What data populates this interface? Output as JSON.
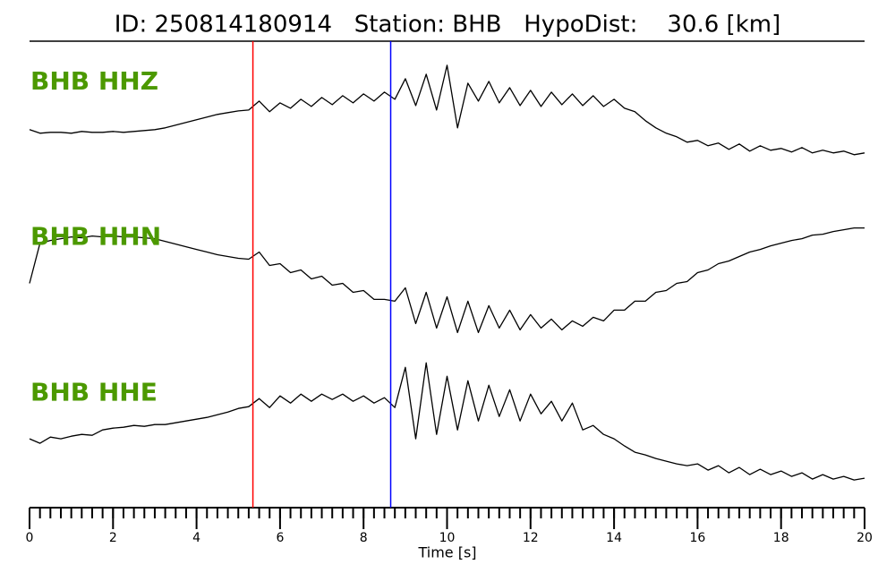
{
  "chart_data": {
    "type": "line",
    "title": "ID: 250814180914   Station: BHB   HypoDist:    30.6 [km]",
    "xlabel": "Time [s]",
    "xlim": [
      0,
      20
    ],
    "xticks": [
      0,
      2,
      4,
      6,
      8,
      10,
      12,
      14,
      16,
      18,
      20
    ],
    "xminorticks": [
      0,
      0.25,
      0.5,
      0.75,
      1,
      1.25,
      1.5,
      1.75,
      2,
      2.25,
      2.5,
      2.75,
      3,
      3.25,
      3.5,
      3.75,
      4,
      4.25,
      4.5,
      4.75,
      5,
      5.25,
      5.5,
      5.75,
      6,
      6.25,
      6.5,
      6.75,
      7,
      7.25,
      7.5,
      7.75,
      8,
      8.25,
      8.5,
      8.75,
      9,
      9.25,
      9.5,
      9.75,
      10,
      10.25,
      10.5,
      10.75,
      11,
      11.25,
      11.5,
      11.75,
      12,
      12.25,
      12.5,
      12.75,
      13,
      13.25,
      13.5,
      13.75,
      14,
      14.25,
      14.5,
      14.75,
      15,
      15.25,
      15.5,
      15.75,
      16,
      16.25,
      16.5,
      16.75,
      17,
      17.25,
      17.5,
      17.75,
      18,
      18.25,
      18.5,
      18.75,
      19,
      19.25,
      19.5,
      19.75,
      20
    ],
    "ylim": [
      -87,
      87
    ],
    "label_color": "#4c9900",
    "picks": [
      {
        "x": 5.35,
        "color": "#ff0000"
      },
      {
        "x": 8.65,
        "color": "#0000ff"
      }
    ],
    "x": [
      0,
      0.25,
      0.5,
      0.75,
      1,
      1.25,
      1.5,
      1.75,
      2,
      2.25,
      2.5,
      2.75,
      3,
      3.25,
      3.5,
      3.75,
      4,
      4.25,
      4.5,
      4.75,
      5,
      5.25,
      5.5,
      5.75,
      6,
      6.25,
      6.5,
      6.75,
      7,
      7.25,
      7.5,
      7.75,
      8,
      8.25,
      8.5,
      8.75,
      9,
      9.25,
      9.5,
      9.75,
      10,
      10.25,
      10.5,
      10.75,
      11,
      11.25,
      11.5,
      11.75,
      12,
      12.25,
      12.5,
      12.75,
      13,
      13.25,
      13.5,
      13.75,
      14,
      14.25,
      14.5,
      14.75,
      15,
      15.25,
      15.5,
      15.75,
      16,
      16.25,
      16.5,
      16.75,
      17,
      17.25,
      17.5,
      17.75,
      18,
      18.25,
      18.5,
      18.75,
      19,
      19.25,
      19.5,
      19.75,
      20
    ],
    "series": [
      {
        "name": "BHB HHZ",
        "color": "#000000",
        "values": [
          -12,
          -16,
          -15,
          -15,
          -16,
          -14,
          -15,
          -15,
          -14,
          -15,
          -14,
          -13,
          -12,
          -10,
          -7,
          -4,
          -1,
          2,
          5,
          7,
          9,
          10,
          20,
          8,
          18,
          12,
          22,
          14,
          24,
          16,
          26,
          18,
          28,
          20,
          30,
          22,
          45,
          15,
          50,
          10,
          60,
          -10,
          40,
          20,
          42,
          18,
          35,
          15,
          32,
          14,
          30,
          16,
          28,
          15,
          26,
          14,
          22,
          12,
          8,
          -2,
          -10,
          -16,
          -20,
          -26,
          -24,
          -30,
          -27,
          -34,
          -28,
          -36,
          -30,
          -35,
          -33,
          -37,
          -32,
          -38,
          -35,
          -38,
          -36,
          -40,
          -38
        ]
      },
      {
        "name": "BHB HHN",
        "color": "#000000",
        "values": [
          -10,
          35,
          38,
          40,
          42,
          41,
          43,
          42,
          43,
          42,
          42,
          41,
          40,
          37,
          34,
          31,
          28,
          25,
          22,
          20,
          18,
          17,
          25,
          10,
          12,
          2,
          5,
          -5,
          -2,
          -12,
          -10,
          -20,
          -18,
          -28,
          -28,
          -30,
          -15,
          -55,
          -20,
          -60,
          -25,
          -65,
          -30,
          -65,
          -35,
          -60,
          -40,
          -62,
          -45,
          -60,
          -50,
          -62,
          -52,
          -58,
          -48,
          -52,
          -40,
          -40,
          -30,
          -30,
          -20,
          -18,
          -10,
          -8,
          2,
          5,
          12,
          15,
          20,
          25,
          28,
          32,
          35,
          38,
          40,
          44,
          45,
          48,
          50,
          52,
          52
        ]
      },
      {
        "name": "BHB HHE",
        "color": "#000000",
        "values": [
          -10,
          -15,
          -8,
          -10,
          -7,
          -5,
          -6,
          0,
          2,
          3,
          5,
          4,
          6,
          6,
          8,
          10,
          12,
          14,
          17,
          20,
          24,
          26,
          35,
          25,
          38,
          30,
          40,
          32,
          40,
          34,
          40,
          32,
          38,
          30,
          36,
          25,
          70,
          -10,
          75,
          -5,
          60,
          0,
          55,
          10,
          50,
          15,
          45,
          10,
          40,
          18,
          32,
          10,
          30,
          0,
          5,
          -5,
          -10,
          -18,
          -25,
          -28,
          -32,
          -35,
          -38,
          -40,
          -38,
          -45,
          -40,
          -48,
          -42,
          -50,
          -44,
          -50,
          -46,
          -52,
          -48,
          -55,
          -50,
          -55,
          -52,
          -56,
          -54
        ]
      }
    ]
  }
}
